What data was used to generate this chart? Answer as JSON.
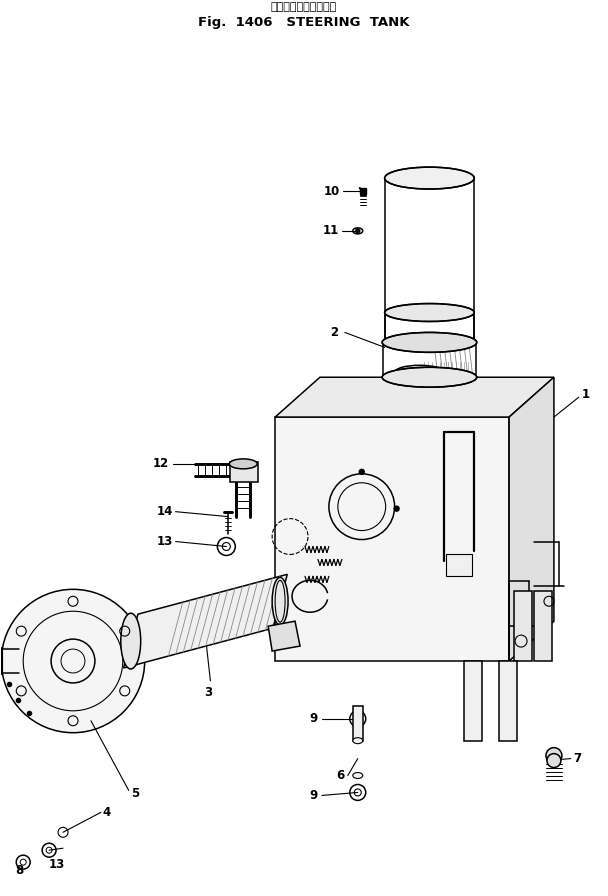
{
  "bg_color": "#ffffff",
  "line_color": "#000000",
  "title_jp": "ステアリング　タンク",
  "title_en": "Fig. 1406  STEERING TANK"
}
